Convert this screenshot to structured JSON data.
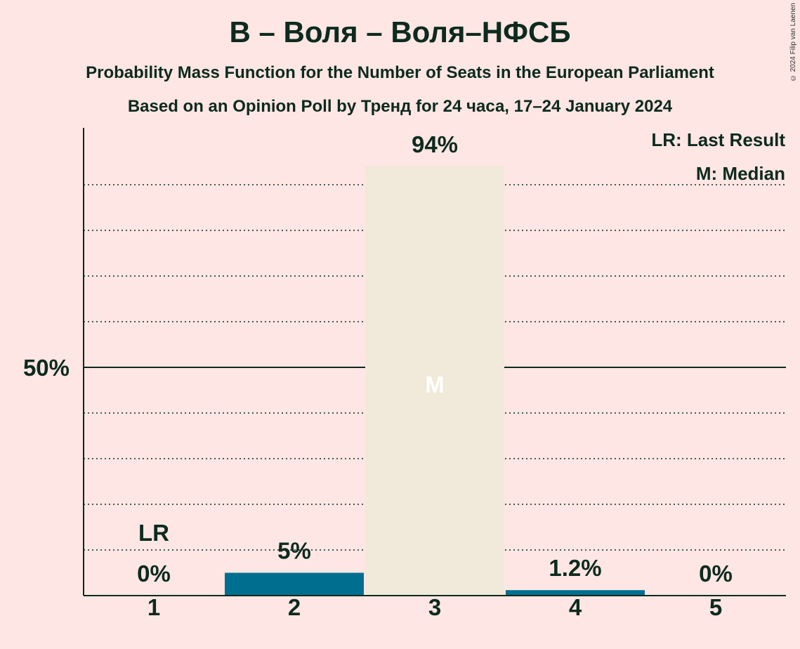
{
  "chart_data": {
    "type": "bar",
    "title": "В – Воля – Воля–НФСБ",
    "subtitle_1": "Probability Mass Function for the Number of Seats in the European Parliament",
    "subtitle_2": "Based on an Opinion Poll by Тренд for 24 часа, 17–24 January 2024",
    "categories": [
      "1",
      "2",
      "3",
      "4",
      "5"
    ],
    "values": [
      0,
      5,
      94,
      1.2,
      0
    ],
    "value_labels": [
      "0%",
      "5%",
      "94%",
      "1.2%",
      "0%"
    ],
    "ylim": [
      0,
      100
    ],
    "ytick_label": "50%",
    "ytick_value": 50,
    "grid": "dotted every 10%",
    "last_result_category": "1",
    "last_result_marker": "LR",
    "median_category": "3",
    "median_marker": "M",
    "legend": [
      "LR: Last Result",
      "M: Median"
    ],
    "legend_position": "top-right",
    "colors": {
      "background": "#fde6e4",
      "bar": "#006f8f",
      "median_bar": "#f1e9d9",
      "text": "#0d2a1e",
      "median_marker": "#ffffff"
    }
  },
  "copyright": "© 2024 Filip van Laenen"
}
